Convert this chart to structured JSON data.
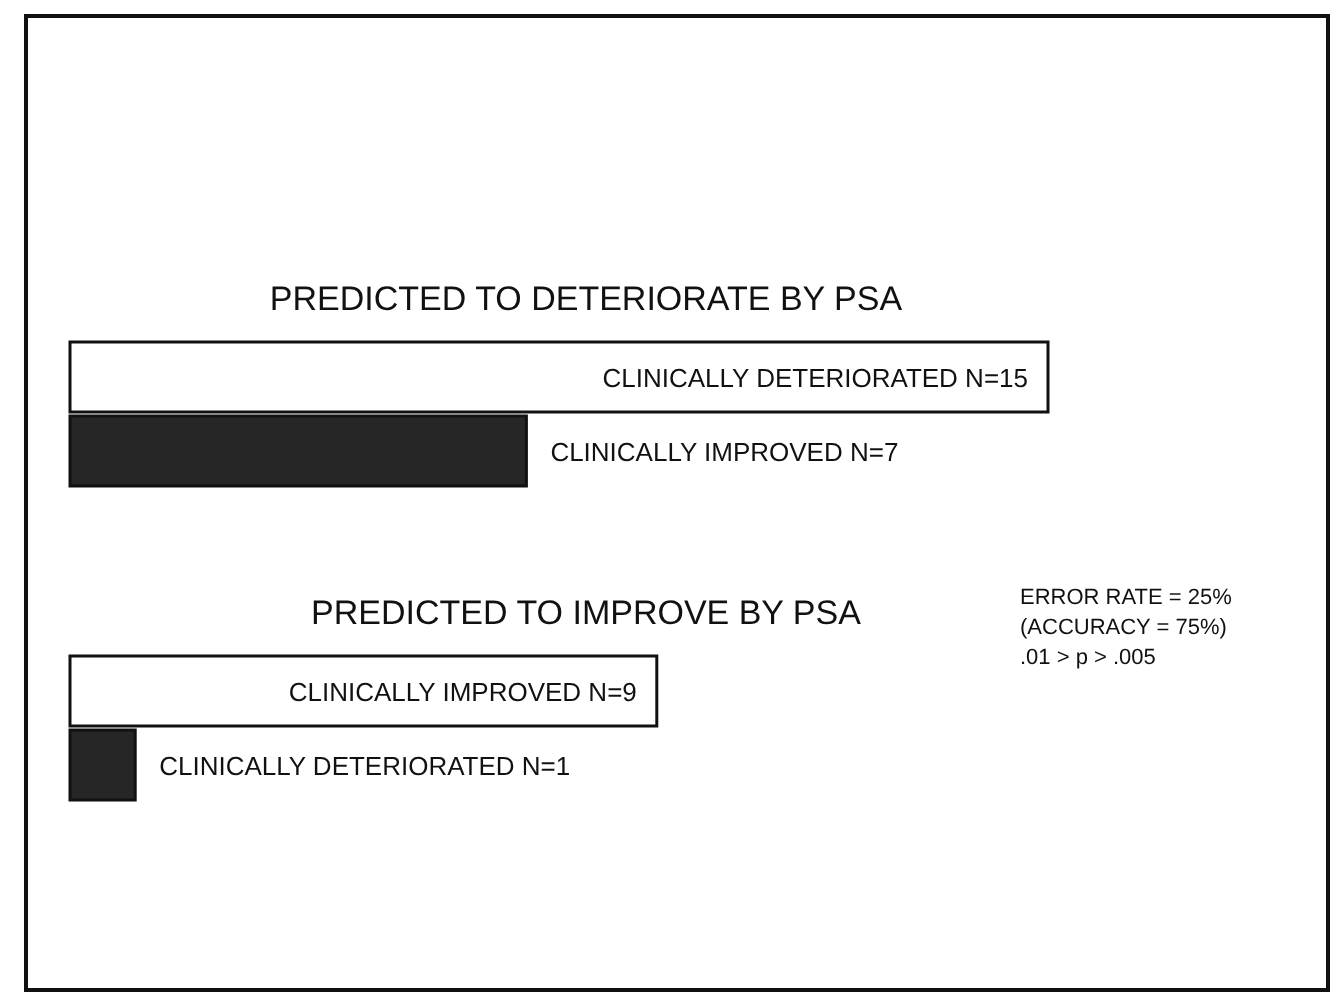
{
  "chart_data": {
    "type": "bar",
    "orientation": "horizontal",
    "categories": [
      null,
      null,
      null,
      null
    ],
    "values": [
      15,
      7,
      9,
      1
    ],
    "value_labels": [
      "CLINICALLY DETERIORATED N=15",
      "CLINICALLY IMPROVED N=7",
      "CLINICALLY IMPROVED N=9",
      "CLINICALLY DETERIORATED N=1"
    ],
    "colors": [
      "#ffffff",
      "#262626",
      "#ffffff",
      "#262626"
    ],
    "annotations": [
      "PREDICTED TO DETERIORATE BY PSA",
      "PREDICTED TO IMPROVE BY PSA",
      "ERROR RATE = 25%",
      "(ACCURACY = 75%)",
      ".01 > p > .005"
    ]
  }
}
